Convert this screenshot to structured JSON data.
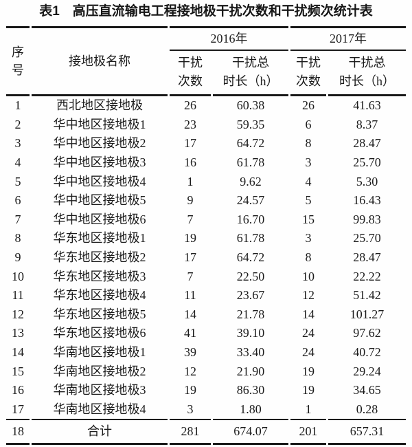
{
  "caption": "表1　高压直流输电工程接地极干扰次数和干扰频次统计表",
  "colors": {
    "background": "#fefefe",
    "text": "#1b1b1b",
    "rule": "#191919"
  },
  "table": {
    "header": {
      "serial": "序\n号",
      "name": "接地极名称",
      "year2016": "2016年",
      "year2017": "2017年",
      "count": "干扰\n次数",
      "duration": "干扰总\n时长（h）"
    },
    "rows": [
      {
        "no": "1",
        "name": "西北地区接地极",
        "c2016": "26",
        "d2016": "60.38",
        "c2017": "26",
        "d2017": "41.63"
      },
      {
        "no": "2",
        "name": "华中地区接地极1",
        "c2016": "23",
        "d2016": "59.35",
        "c2017": "6",
        "d2017": "8.37"
      },
      {
        "no": "3",
        "name": "华中地区接地极2",
        "c2016": "17",
        "d2016": "64.72",
        "c2017": "8",
        "d2017": "28.47"
      },
      {
        "no": "4",
        "name": "华中地区接地极3",
        "c2016": "16",
        "d2016": "61.78",
        "c2017": "3",
        "d2017": "25.70"
      },
      {
        "no": "5",
        "name": "华中地区接地极4",
        "c2016": "1",
        "d2016": "9.62",
        "c2017": "4",
        "d2017": "5.30"
      },
      {
        "no": "6",
        "name": "华中地区接地极5",
        "c2016": "9",
        "d2016": "24.57",
        "c2017": "5",
        "d2017": "16.43"
      },
      {
        "no": "7",
        "name": "华中地区接地极6",
        "c2016": "7",
        "d2016": "16.70",
        "c2017": "15",
        "d2017": "99.83"
      },
      {
        "no": "8",
        "name": "华东地区接地极1",
        "c2016": "19",
        "d2016": "61.78",
        "c2017": "3",
        "d2017": "25.70"
      },
      {
        "no": "9",
        "name": "华东地区接地极2",
        "c2016": "17",
        "d2016": "64.72",
        "c2017": "8",
        "d2017": "28.47"
      },
      {
        "no": "10",
        "name": "华东地区接地极3",
        "c2016": "7",
        "d2016": "22.50",
        "c2017": "10",
        "d2017": "22.22"
      },
      {
        "no": "11",
        "name": "华东地区接地极4",
        "c2016": "11",
        "d2016": "23.67",
        "c2017": "12",
        "d2017": "51.42"
      },
      {
        "no": "12",
        "name": "华东地区接地极5",
        "c2016": "14",
        "d2016": "21.78",
        "c2017": "14",
        "d2017": "101.27"
      },
      {
        "no": "13",
        "name": "华东地区接地极6",
        "c2016": "41",
        "d2016": "39.10",
        "c2017": "24",
        "d2017": "97.62"
      },
      {
        "no": "14",
        "name": "华南地区接地极1",
        "c2016": "39",
        "d2016": "33.40",
        "c2017": "24",
        "d2017": "40.72"
      },
      {
        "no": "15",
        "name": "华南地区接地极2",
        "c2016": "12",
        "d2016": "21.90",
        "c2017": "19",
        "d2017": "29.24"
      },
      {
        "no": "16",
        "name": "华南地区接地极3",
        "c2016": "19",
        "d2016": "86.30",
        "c2017": "19",
        "d2017": "34.65"
      },
      {
        "no": "17",
        "name": "华南地区接地极4",
        "c2016": "3",
        "d2016": "1.80",
        "c2017": "1",
        "d2017": "0.28"
      }
    ],
    "total": {
      "no": "18",
      "name": "合计",
      "c2016": "281",
      "d2016": "674.07",
      "c2017": "201",
      "d2017": "657.31"
    }
  }
}
